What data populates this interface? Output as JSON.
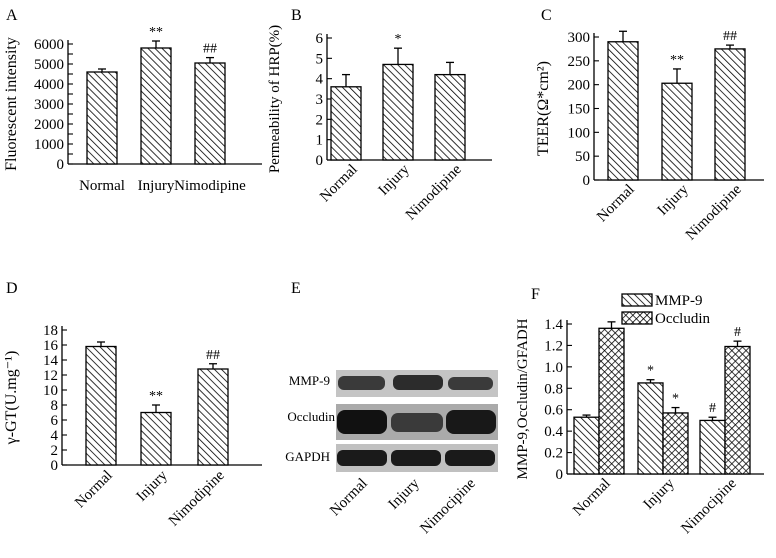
{
  "panels": [
    {
      "letter": "A",
      "chart_data": {
        "type": "bar",
        "categories": [
          "Normal",
          "Injury",
          "Nimodipine"
        ],
        "values": [
          4600,
          5800,
          5050
        ],
        "errors": [
          150,
          350,
          270
        ],
        "significance": [
          "",
          "**",
          "##"
        ],
        "ylabel": "Fluorescent intensity",
        "ylim": [
          0,
          6000
        ],
        "yticks": [
          "0",
          "500",
          "1000",
          "1500",
          "2000",
          "2500",
          "3000",
          "3500",
          "4000",
          "4500",
          "5000",
          "5500",
          "6000"
        ],
        "yticks_labeled": [
          "0",
          "1000",
          "2000",
          "3000",
          "4000",
          "5000",
          "6000"
        ]
      }
    },
    {
      "letter": "B",
      "chart_data": {
        "type": "bar",
        "categories": [
          "Normal",
          "Injury",
          "Nimodipine"
        ],
        "values": [
          3.6,
          4.7,
          4.2
        ],
        "errors": [
          0.6,
          0.8,
          0.6
        ],
        "significance": [
          "",
          "*",
          ""
        ],
        "ylabel": "Permeability of HRP(%)",
        "ylim": [
          0,
          6
        ],
        "yticks": [
          "0",
          "1",
          "2",
          "3",
          "4",
          "5",
          "6"
        ]
      }
    },
    {
      "letter": "C",
      "chart_data": {
        "type": "bar",
        "categories": [
          "Normal",
          "Injury",
          "Nimodipine"
        ],
        "values": [
          290,
          203,
          275
        ],
        "errors": [
          22,
          30,
          8
        ],
        "significance": [
          "",
          "**",
          "##"
        ],
        "ylabel": "TEER(Ω*cm²)",
        "ylim": [
          0,
          300
        ],
        "yticks": [
          "0",
          "50",
          "100",
          "150",
          "200",
          "250",
          "300"
        ]
      }
    },
    {
      "letter": "D",
      "chart_data": {
        "type": "bar",
        "categories": [
          "Normal",
          "Injury",
          "Nimodipine"
        ],
        "values": [
          15.8,
          7.0,
          12.8
        ],
        "errors": [
          0.6,
          1.0,
          0.7
        ],
        "significance": [
          "",
          "**",
          "##"
        ],
        "ylabel": "γ-GT(U.mg⁻¹)",
        "ylim": [
          0,
          18
        ],
        "yticks": [
          "0",
          "2",
          "4",
          "6",
          "8",
          "10",
          "12",
          "14",
          "16",
          "18"
        ]
      }
    },
    {
      "letter": "E",
      "blot": {
        "rows": [
          "MMP-9",
          "Occludin",
          "GAPDH"
        ],
        "lanes": [
          "Normal",
          "Injury",
          "Nimocipine"
        ]
      }
    },
    {
      "letter": "F",
      "chart_data": {
        "type": "bar",
        "categories": [
          "Normal",
          "Injury",
          "Nimocipine"
        ],
        "series": [
          {
            "name": "MMP-9",
            "values": [
              0.53,
              0.85,
              0.5
            ],
            "errors": [
              0.02,
              0.03,
              0.03
            ],
            "significance": [
              "",
              "*",
              "#"
            ],
            "pattern": "diagonal"
          },
          {
            "name": "Occludin",
            "values": [
              1.36,
              0.57,
              1.19
            ],
            "errors": [
              0.06,
              0.05,
              0.05
            ],
            "significance": [
              "",
              "*",
              "#"
            ],
            "pattern": "crosshatch"
          }
        ],
        "ylabel": "MMP-9,Occludin/GFADH",
        "ylim": [
          0,
          1.4
        ],
        "yticks": [
          "0",
          "0.2",
          "0.4",
          "0.6",
          "0.8",
          "1.0",
          "1.2",
          "1.4"
        ],
        "legend": "top-right"
      }
    }
  ]
}
